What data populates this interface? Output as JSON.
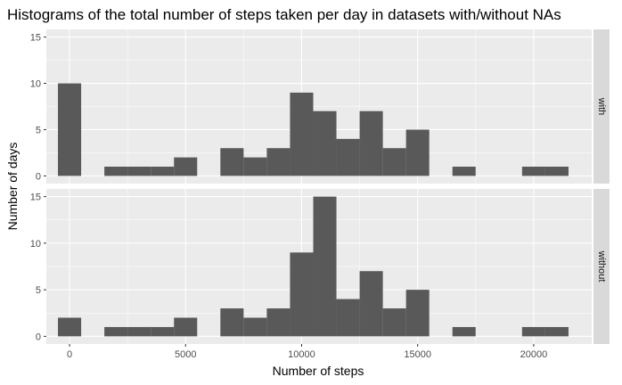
{
  "chart_data": {
    "type": "bar",
    "title": "Histograms of the total number of steps taken per day in datasets with/without NAs",
    "xlabel": "Number of steps",
    "ylabel": "Number of days",
    "xlim": [
      -1000,
      22500
    ],
    "ylim": [
      0,
      15
    ],
    "x_ticks": [
      0,
      5000,
      10000,
      15000,
      20000
    ],
    "x_tick_labels": [
      "0",
      "5000",
      "10000",
      "15000",
      "20000"
    ],
    "y_ticks": [
      0,
      5,
      10,
      15
    ],
    "y_tick_labels": [
      "0",
      "5",
      "10",
      "15"
    ],
    "binwidth": 1000,
    "bin_centers": [
      0,
      1000,
      2000,
      3000,
      4000,
      5000,
      6000,
      7000,
      8000,
      9000,
      10000,
      11000,
      12000,
      13000,
      14000,
      15000,
      16000,
      17000,
      18000,
      19000,
      20000,
      21000
    ],
    "grid": true,
    "panels": [
      {
        "strip_label": "with",
        "values": [
          10,
          0,
          1,
          1,
          1,
          2,
          0,
          3,
          2,
          3,
          9,
          7,
          4,
          7,
          3,
          5,
          0,
          1,
          0,
          0,
          1,
          1
        ]
      },
      {
        "strip_label": "without",
        "values": [
          2,
          0,
          1,
          1,
          1,
          2,
          0,
          3,
          2,
          3,
          9,
          15,
          4,
          7,
          3,
          5,
          0,
          1,
          0,
          0,
          1,
          1
        ]
      }
    ],
    "colors": {
      "bar": "#595959",
      "panel_bg": "#ebebeb",
      "strip_bg": "#d9d9d9",
      "grid": "#ffffff"
    }
  }
}
